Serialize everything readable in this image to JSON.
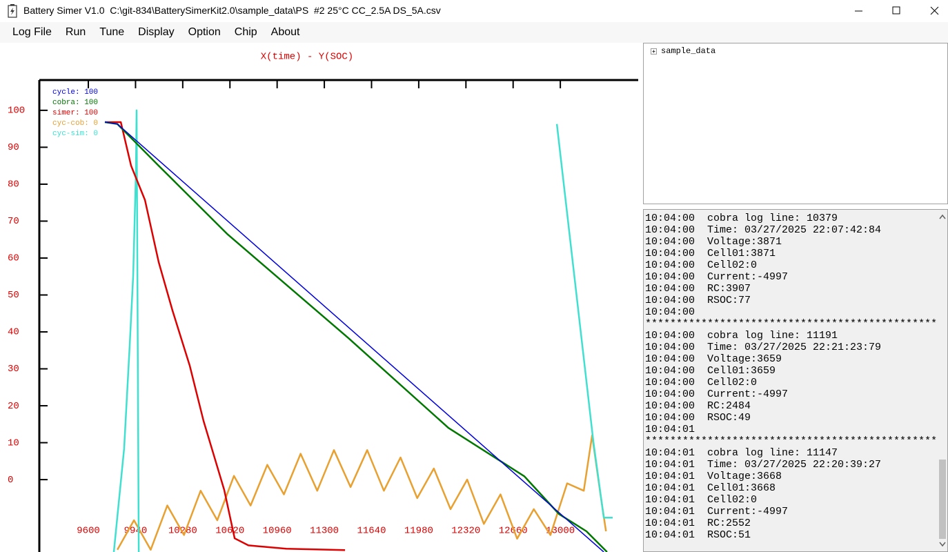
{
  "window": {
    "title": "Battery Simer V1.0  C:\\git-834\\BatterySimerKit2.0\\sample_data\\PS  #2 25°C CC_2.5A DS_5A.csv"
  },
  "menu": [
    "Log File",
    "Run",
    "Tune",
    "Display",
    "Option",
    "Chip",
    "About"
  ],
  "chart_data": {
    "type": "line",
    "title": "X(time) - Y(SOC)",
    "xlim": [
      9247,
      13561
    ],
    "ylim": [
      -19.6,
      108.2
    ],
    "xticks": [
      9600,
      9940,
      10280,
      10620,
      10960,
      11300,
      11640,
      11980,
      12320,
      12660,
      13000
    ],
    "yticks": [
      100,
      90,
      80,
      70,
      60,
      50,
      40,
      30,
      20,
      10,
      0
    ],
    "tick_color": "#dd0000",
    "series": [
      {
        "name": "cycle: 100",
        "color": "#0000dd",
        "x": [
          9719,
          9809,
          13313
        ],
        "values": [
          96.8,
          96.3,
          -19.6
        ]
      },
      {
        "name": "cobra: 100",
        "color": "#007700",
        "x": [
          9719,
          9809,
          10107,
          10604,
          11474,
          12194,
          12741,
          12990,
          13188,
          13337
        ],
        "values": [
          96.8,
          96.3,
          85.0,
          66.4,
          38.3,
          14.0,
          0.9,
          -9.3,
          -14.0,
          -19.6
        ]
      },
      {
        "name": "simer: 100",
        "color": "#dd0000",
        "x": [
          9719,
          9834,
          9908,
          10008,
          10107,
          10206,
          10331,
          10430,
          10505,
          10579,
          10654,
          10753,
          11026,
          11449
        ],
        "values": [
          96.8,
          96.8,
          85.0,
          75.7,
          58.9,
          45.8,
          30.8,
          15.9,
          6.5,
          -2.8,
          -15.9,
          -17.8,
          -18.7,
          -19.1
        ]
      },
      {
        "name": "cyc-cob: 0",
        "color": "#e8a030",
        "x": [
          9809,
          9929,
          10049,
          10169,
          10289,
          10409,
          10529,
          10649,
          10769,
          10889,
          11009,
          11129,
          11249,
          11369,
          11489,
          11609,
          11729,
          11849,
          11969,
          12089,
          12209,
          12329,
          12449,
          12569,
          12689,
          12809,
          12929,
          13049,
          13169,
          13229,
          13289,
          13329
        ],
        "values": [
          -19,
          -11,
          -19,
          -7,
          -15,
          -3,
          -11,
          1,
          -7,
          4,
          -4,
          7,
          -3,
          8,
          -2,
          8,
          -3,
          6,
          -5,
          3,
          -8,
          0,
          -12,
          -4,
          -16,
          -8,
          -15,
          -1,
          -3,
          12,
          -4,
          -14
        ]
      },
      {
        "name": "cyc-sim: 0",
        "color": "#40e0d0",
        "x": [
          9784,
          9858,
          9898,
          9923,
          9943,
          9948,
          9963,
          9963,
          12975,
          13238,
          13313,
          13377
        ],
        "values": [
          -19.6,
          8.4,
          36.4,
          55.1,
          83.2,
          100,
          -19.6,
          null,
          96.3,
          10.3,
          -10.3,
          -10.3
        ]
      }
    ]
  },
  "tree": {
    "root": "sample_data"
  },
  "log": [
    "10:04:00  cobra log line: 10379",
    "10:04:00  Time: 03/27/2025 22:07:42:84",
    "10:04:00  Voltage:3871",
    "10:04:00  Cell01:3871",
    "10:04:00  Cell02:0",
    "10:04:00  Current:-4997",
    "10:04:00  RC:3907",
    "10:04:00  RSOC:77",
    "10:04:00",
    "***********************************************",
    "10:04:00  cobra log line: 11191",
    "10:04:00  Time: 03/27/2025 22:21:23:79",
    "10:04:00  Voltage:3659",
    "10:04:00  Cell01:3659",
    "10:04:00  Cell02:0",
    "10:04:00  Current:-4997",
    "10:04:00  RC:2484",
    "10:04:00  RSOC:49",
    "10:04:01",
    "***********************************************",
    "10:04:01  cobra log line: 11147",
    "10:04:01  Time: 03/27/2025 22:20:39:27",
    "10:04:01  Voltage:3668",
    "10:04:01  Cell01:3668",
    "10:04:01  Cell02:0",
    "10:04:01  Current:-4997",
    "10:04:01  RC:2552",
    "10:04:01  RSOC:51"
  ]
}
